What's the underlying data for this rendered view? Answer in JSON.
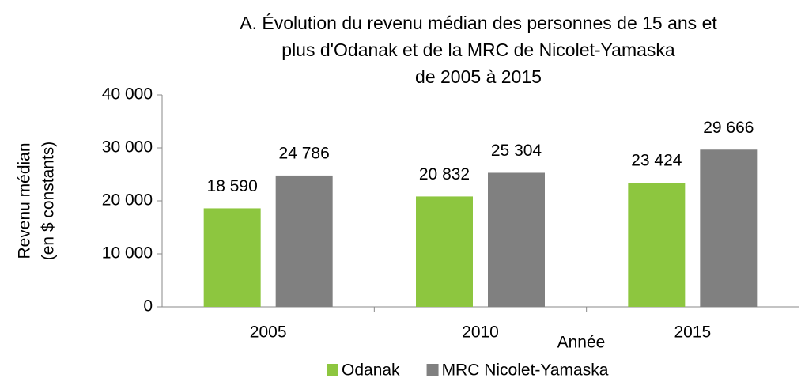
{
  "chart_data": {
    "type": "bar",
    "title": [
      "A. Évolution du revenu médian des personnes de 15 ans et",
      "plus d'Odanak et de la MRC de Nicolet-Yamaska",
      "de 2005 à 2015"
    ],
    "y_axis_label": [
      "Revenu médian",
      "(en $ constants)"
    ],
    "x_axis_label": "Année",
    "categories": [
      "2005",
      "2010",
      "2015"
    ],
    "series": [
      {
        "name": "Odanak",
        "color": "#8dc63f",
        "values": [
          18590,
          20832,
          23424
        ],
        "value_labels": [
          "18 590",
          "20 832",
          "23 424"
        ]
      },
      {
        "name": "MRC Nicolet-Yamaska",
        "color": "#808080",
        "values": [
          24786,
          25304,
          29666
        ],
        "value_labels": [
          "24 786",
          "25 304",
          "29 666"
        ]
      }
    ],
    "ylim": [
      0,
      40000
    ],
    "yticks": [
      {
        "value": 0,
        "label": "0"
      },
      {
        "value": 10000,
        "label": "10 000"
      },
      {
        "value": 20000,
        "label": "20 000"
      },
      {
        "value": 30000,
        "label": "30 000"
      },
      {
        "value": 40000,
        "label": "40 000"
      }
    ],
    "grid": false,
    "legend": "bottom"
  }
}
